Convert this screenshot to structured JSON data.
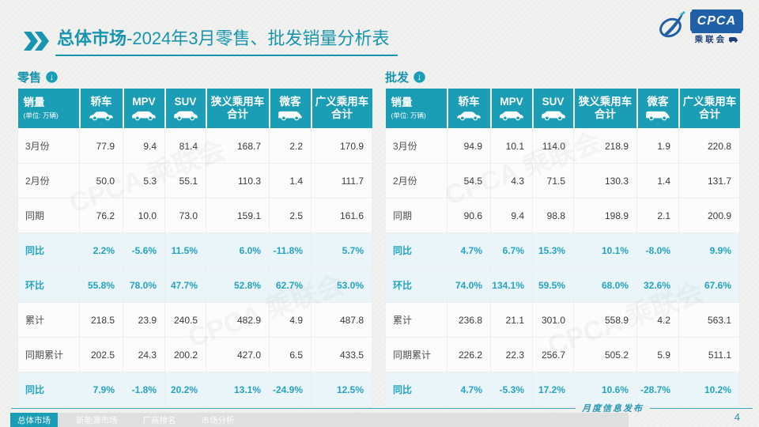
{
  "colors": {
    "accent": "#1b9db6",
    "accent-dark": "#1795af",
    "highlight-bg": "#e9f5f9",
    "highlight-text": "#25a3c2",
    "logo-blue": "#2060a8",
    "tab-gray": "#dfdfdf"
  },
  "page": {
    "title_section": "总体市场",
    "title_rest": "-2024年3月零售、批发销量分析表",
    "footer_note": "月度信息发布",
    "page_number": "4",
    "watermark": "CPCA 乘联会"
  },
  "logo": {
    "main": "CPCA",
    "sub": "乘联会"
  },
  "table_columns": [
    {
      "label": "销量",
      "unit": "(单位: 万辆)"
    },
    {
      "label": "轿车",
      "icon": "sedan-icon"
    },
    {
      "label": "MPV",
      "icon": "mpv-icon"
    },
    {
      "label": "SUV",
      "icon": "suv-icon"
    },
    {
      "lines": [
        "狭义乘用车",
        "合计"
      ]
    },
    {
      "label": "微客",
      "icon": "van-icon"
    },
    {
      "lines": [
        "广义乘用车",
        "合计"
      ]
    }
  ],
  "tables": [
    {
      "name": "retail",
      "section_label": "零售",
      "rows": [
        {
          "label": "3月份",
          "highlight": false,
          "values": [
            "77.9",
            "9.4",
            "81.4",
            "168.7",
            "2.2",
            "170.9"
          ]
        },
        {
          "label": "2月份",
          "highlight": false,
          "values": [
            "50.0",
            "5.3",
            "55.1",
            "110.3",
            "1.4",
            "111.7"
          ]
        },
        {
          "label": "同期",
          "highlight": false,
          "values": [
            "76.2",
            "10.0",
            "73.0",
            "159.1",
            "2.5",
            "161.6"
          ]
        },
        {
          "label": "同比",
          "highlight": true,
          "values": [
            "2.2%",
            "-5.6%",
            "11.5%",
            "6.0%",
            "-11.8%",
            "5.7%"
          ]
        },
        {
          "label": "环比",
          "highlight": true,
          "values": [
            "55.8%",
            "78.0%",
            "47.7%",
            "52.8%",
            "62.7%",
            "53.0%"
          ]
        },
        {
          "label": "累计",
          "highlight": false,
          "values": [
            "218.5",
            "23.9",
            "240.5",
            "482.9",
            "4.9",
            "487.8"
          ]
        },
        {
          "label": "同期累计",
          "highlight": false,
          "values": [
            "202.5",
            "24.3",
            "200.2",
            "427.0",
            "6.5",
            "433.5"
          ]
        },
        {
          "label": "同比",
          "highlight": true,
          "values": [
            "7.9%",
            "-1.8%",
            "20.2%",
            "13.1%",
            "-24.9%",
            "12.5%"
          ]
        }
      ]
    },
    {
      "name": "wholesale",
      "section_label": "批发",
      "rows": [
        {
          "label": "3月份",
          "highlight": false,
          "values": [
            "94.9",
            "10.1",
            "114.0",
            "218.9",
            "1.9",
            "220.8"
          ]
        },
        {
          "label": "2月份",
          "highlight": false,
          "values": [
            "54.5",
            "4.3",
            "71.5",
            "130.3",
            "1.4",
            "131.7"
          ]
        },
        {
          "label": "同期",
          "highlight": false,
          "values": [
            "90.6",
            "9.4",
            "98.8",
            "198.9",
            "2.1",
            "200.9"
          ]
        },
        {
          "label": "同比",
          "highlight": true,
          "values": [
            "4.7%",
            "6.7%",
            "15.3%",
            "10.1%",
            "-8.0%",
            "9.9%"
          ]
        },
        {
          "label": "环比",
          "highlight": true,
          "values": [
            "74.0%",
            "134.1%",
            "59.5%",
            "68.0%",
            "32.6%",
            "67.6%"
          ]
        },
        {
          "label": "累计",
          "highlight": false,
          "values": [
            "236.8",
            "21.1",
            "301.0",
            "558.9",
            "4.2",
            "563.1"
          ]
        },
        {
          "label": "同期累计",
          "highlight": false,
          "values": [
            "226.2",
            "22.3",
            "256.7",
            "505.2",
            "5.9",
            "511.1"
          ]
        },
        {
          "label": "同比",
          "highlight": true,
          "values": [
            "4.7%",
            "-5.3%",
            "17.2%",
            "10.6%",
            "-28.7%",
            "10.2%"
          ]
        }
      ]
    }
  ],
  "footer_tabs": [
    {
      "label": "总体市场",
      "active": true
    },
    {
      "label": "新能源市场",
      "active": false
    },
    {
      "label": "厂商排名",
      "active": false
    },
    {
      "label": "市场分析",
      "active": false
    }
  ]
}
